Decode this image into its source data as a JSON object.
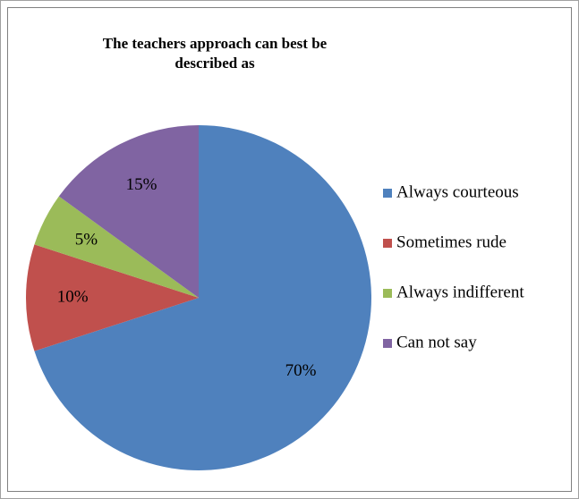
{
  "chart_data": {
    "type": "pie",
    "title": "The teachers approach can best be described as",
    "categories": [
      "Always courteous",
      "Sometimes rude",
      "Always indifferent",
      "Can not say"
    ],
    "values": [
      70,
      10,
      5,
      15
    ],
    "value_labels": [
      "70%",
      "10%",
      "5%",
      "15%"
    ],
    "colors": [
      "#4f81bd",
      "#c0504d",
      "#9bbb59",
      "#8064a2"
    ],
    "legend": "right"
  }
}
